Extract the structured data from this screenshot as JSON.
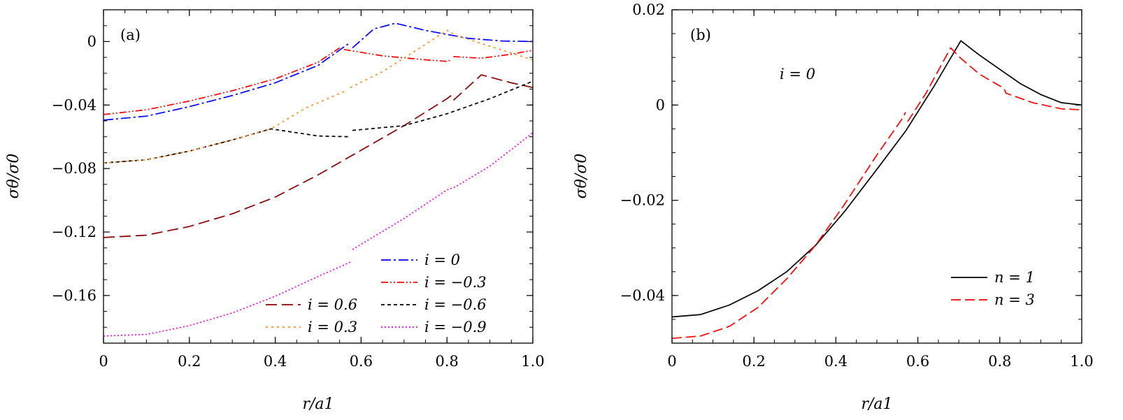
{
  "chart_data": [
    {
      "type": "line",
      "panel_label": "(a)",
      "xlabel": "r/a1",
      "ylabel": "σθ/σ0",
      "xlim": [
        0,
        1.0
      ],
      "ylim": [
        -0.19,
        0.02
      ],
      "x_ticks": [
        "0",
        "0.2",
        "0.4",
        "0.6",
        "0.8",
        "1.0"
      ],
      "y_ticks": [
        {
          "value": 0,
          "label": "0"
        },
        {
          "value": -0.04,
          "label": "−0.04"
        },
        {
          "value": -0.08,
          "label": "−0.08"
        },
        {
          "value": -0.12,
          "label": "−0.12"
        },
        {
          "value": -0.16,
          "label": "−0.16"
        }
      ],
      "legend_position": "bottom-right",
      "series": [
        {
          "name": "i = 0",
          "color": "#0000ff",
          "dash": "14,4,3,4",
          "segments": [
            [
              [
                0,
                -0.0495
              ],
              [
                0.1,
                -0.047
              ],
              [
                0.2,
                -0.041
              ],
              [
                0.3,
                -0.034
              ],
              [
                0.4,
                -0.026
              ],
              [
                0.5,
                -0.015
              ],
              [
                0.57,
                -0.0015
              ]
            ],
            [
              [
                0.58,
                -0.004
              ],
              [
                0.63,
                0.008
              ],
              [
                0.68,
                0.0115
              ],
              [
                0.75,
                0.007
              ],
              [
                0.85,
                0.002
              ],
              [
                0.93,
                0.0003
              ],
              [
                1.0,
                0.0
              ]
            ]
          ]
        },
        {
          "name": "i = −0.3",
          "color": "#ff0000",
          "dash": "10,3,2,3,2,3",
          "segments": [
            [
              [
                0,
                -0.046
              ],
              [
                0.1,
                -0.043
              ],
              [
                0.2,
                -0.0375
              ],
              [
                0.3,
                -0.031
              ],
              [
                0.4,
                -0.0235
              ],
              [
                0.5,
                -0.013
              ],
              [
                0.55,
                -0.004
              ]
            ],
            [
              [
                0.56,
                -0.005
              ],
              [
                0.65,
                -0.009
              ],
              [
                0.75,
                -0.0115
              ],
              [
                0.8,
                -0.0125
              ],
              [
                0.81,
                -0.0115
              ]
            ],
            [
              [
                0.815,
                -0.0095
              ],
              [
                0.88,
                -0.0105
              ],
              [
                0.95,
                -0.008
              ],
              [
                1.0,
                -0.0055
              ]
            ]
          ]
        },
        {
          "name": "i = 0.6",
          "color": "#8b0000",
          "dash": "16,7",
          "segments": [
            [
              [
                0,
                -0.1235
              ],
              [
                0.1,
                -0.122
              ],
              [
                0.2,
                -0.1165
              ],
              [
                0.3,
                -0.1085
              ],
              [
                0.4,
                -0.098
              ],
              [
                0.5,
                -0.084
              ],
              [
                0.6,
                -0.0685
              ],
              [
                0.7,
                -0.053
              ],
              [
                0.8,
                -0.036
              ],
              [
                0.81,
                -0.034
              ]
            ],
            [
              [
                0.815,
                -0.037
              ],
              [
                0.88,
                -0.021
              ],
              [
                0.95,
                -0.026
              ],
              [
                1.0,
                -0.029
              ]
            ]
          ]
        },
        {
          "name": "i = −0.6",
          "color": "#000000",
          "dash": "5,4",
          "segments": [
            [
              [
                0,
                -0.0765
              ],
              [
                0.1,
                -0.0745
              ],
              [
                0.2,
                -0.069
              ],
              [
                0.3,
                -0.062
              ],
              [
                0.39,
                -0.055
              ],
              [
                0.5,
                -0.0595
              ],
              [
                0.575,
                -0.06
              ]
            ],
            [
              [
                0.58,
                -0.056
              ],
              [
                0.7,
                -0.053
              ],
              [
                0.8,
                -0.0455
              ],
              [
                0.9,
                -0.036
              ],
              [
                1.0,
                -0.025
              ]
            ]
          ]
        },
        {
          "name": "i = 0.3",
          "color": "#ff8c1a",
          "dash": "3,5",
          "segments": [
            [
              [
                0,
                -0.0765
              ],
              [
                0.1,
                -0.0745
              ],
              [
                0.2,
                -0.069
              ],
              [
                0.3,
                -0.062
              ],
              [
                0.39,
                -0.055
              ],
              [
                0.47,
                -0.042
              ],
              [
                0.565,
                -0.031
              ]
            ],
            [
              [
                0.575,
                -0.029
              ],
              [
                0.65,
                -0.019
              ],
              [
                0.72,
                -0.007
              ],
              [
                0.8,
                0.007
              ],
              [
                0.82,
                0.004
              ],
              [
                0.9,
                -0.003
              ],
              [
                1.0,
                -0.0115
              ]
            ]
          ]
        },
        {
          "name": "i = −0.9",
          "color": "#ee00ee",
          "dash": "2,3",
          "segments": [
            [
              [
                0,
                -0.1855
              ],
              [
                0.1,
                -0.1845
              ],
              [
                0.2,
                -0.179
              ],
              [
                0.3,
                -0.171
              ],
              [
                0.4,
                -0.1605
              ],
              [
                0.5,
                -0.148
              ],
              [
                0.575,
                -0.139
              ]
            ],
            [
              [
                0.58,
                -0.131
              ],
              [
                0.7,
                -0.1115
              ],
              [
                0.8,
                -0.0935
              ],
              [
                0.82,
                -0.0915
              ],
              [
                0.9,
                -0.0785
              ],
              [
                1.0,
                -0.0575
              ]
            ]
          ]
        }
      ],
      "legend_right": [
        "i = 0",
        "i = −0.3",
        "i = −0.6",
        "i = −0.9"
      ],
      "legend_left": [
        "i = 0.6",
        "i = 0.3"
      ]
    },
    {
      "type": "line",
      "panel_label": "(b)",
      "annotation": "i = 0",
      "xlabel": "r/a1",
      "ylabel": "σθ/σ0",
      "xlim": [
        0,
        1.0
      ],
      "ylim": [
        -0.05,
        0.02
      ],
      "x_ticks": [
        "0",
        "0.2",
        "0.4",
        "0.6",
        "0.8",
        "1.0"
      ],
      "y_ticks": [
        {
          "value": 0.02,
          "label": "0.02"
        },
        {
          "value": 0,
          "label": "0"
        },
        {
          "value": -0.02,
          "label": "−0.02"
        },
        {
          "value": -0.04,
          "label": "−0.04"
        }
      ],
      "legend_position": "bottom-right",
      "series": [
        {
          "name": "n = 1",
          "color": "#000000",
          "dash": "",
          "segments": [
            [
              [
                0,
                -0.0445
              ],
              [
                0.07,
                -0.044
              ],
              [
                0.14,
                -0.042
              ],
              [
                0.21,
                -0.039
              ],
              [
                0.28,
                -0.035
              ],
              [
                0.35,
                -0.0295
              ],
              [
                0.42,
                -0.0225
              ],
              [
                0.5,
                -0.0135
              ],
              [
                0.57,
                -0.0055
              ],
              [
                0.64,
                0.004
              ],
              [
                0.705,
                0.0135
              ],
              [
                0.75,
                0.0105
              ],
              [
                0.8,
                0.0075
              ],
              [
                0.85,
                0.0045
              ],
              [
                0.9,
                0.0022
              ],
              [
                0.95,
                0.0005
              ],
              [
                1.0,
                0.0
              ]
            ]
          ]
        },
        {
          "name": "n = 3",
          "color": "#ff0000",
          "dash": "14,6",
          "segments": [
            [
              [
                0,
                -0.049
              ],
              [
                0.07,
                -0.0485
              ],
              [
                0.14,
                -0.0465
              ],
              [
                0.21,
                -0.0425
              ],
              [
                0.28,
                -0.0365
              ],
              [
                0.35,
                -0.0295
              ],
              [
                0.42,
                -0.021
              ],
              [
                0.5,
                -0.0105
              ],
              [
                0.565,
                -0.0025
              ],
              [
                0.57,
                -0.0015
              ]
            ],
            [
              [
                0.575,
                -0.0035
              ],
              [
                0.62,
                0.0025
              ],
              [
                0.68,
                0.012
              ],
              [
                0.705,
                0.0098
              ],
              [
                0.75,
                0.0065
              ],
              [
                0.81,
                0.0035
              ],
              [
                0.815,
                0.0025
              ],
              [
                0.88,
                0.0005
              ],
              [
                0.95,
                -0.0008
              ],
              [
                1.0,
                -0.001
              ]
            ]
          ]
        }
      ],
      "legend": [
        "n = 1",
        "n = 3"
      ]
    }
  ]
}
